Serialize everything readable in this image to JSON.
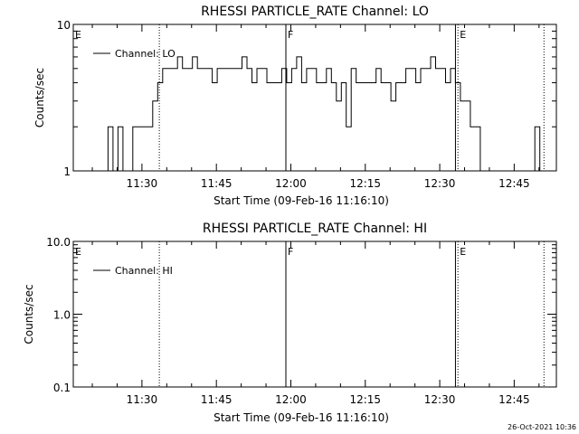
{
  "chart_data": [
    {
      "type": "line",
      "title": "RHESSI PARTICLE_RATE Channel: LO",
      "xlabel": "Start Time (09-Feb-16 11:16:10)",
      "ylabel": "Counts/sec",
      "y_scale": "log",
      "ylim": [
        1,
        10
      ],
      "y_ticks": [
        "1",
        "10"
      ],
      "x_range_minutes": [
        "11:16:10",
        "12:53:30"
      ],
      "x_ticks": [
        "11:30",
        "11:45",
        "12:00",
        "12:15",
        "12:30",
        "12:45"
      ],
      "legend": {
        "placement": "top-left",
        "entries": [
          "Channel: LO"
        ]
      },
      "series": [
        {
          "name": "Channel: LO",
          "x": [
            "11:22:10",
            "11:23:10",
            "11:24:10",
            "11:25:10",
            "11:26:10",
            "11:27:10",
            "11:28:10",
            "11:29:10",
            "11:30:10",
            "11:31:10",
            "11:32:10",
            "11:33:10",
            "11:34:10",
            "11:35:10",
            "11:36:10",
            "11:37:10",
            "11:38:10",
            "11:39:10",
            "11:40:10",
            "11:41:10",
            "11:42:10",
            "11:43:10",
            "11:44:10",
            "11:45:10",
            "11:46:10",
            "11:47:10",
            "11:48:10",
            "11:49:10",
            "11:50:10",
            "11:51:10",
            "11:52:10",
            "11:53:10",
            "11:54:10",
            "11:55:10",
            "11:56:10",
            "11:57:10",
            "11:58:10",
            "11:59:10",
            "12:00:10",
            "12:01:10",
            "12:02:10",
            "12:03:10",
            "12:04:10",
            "12:05:10",
            "12:06:10",
            "12:07:10",
            "12:08:10",
            "12:09:10",
            "12:10:10",
            "12:11:10",
            "12:12:10",
            "12:13:10",
            "12:14:10",
            "12:15:10",
            "12:16:10",
            "12:17:10",
            "12:18:10",
            "12:19:10",
            "12:20:10",
            "12:21:10",
            "12:22:10",
            "12:23:10",
            "12:24:10",
            "12:25:10",
            "12:26:10",
            "12:27:10",
            "12:28:10",
            "12:29:10",
            "12:30:10",
            "12:31:10",
            "12:32:10",
            "12:33:10",
            "12:34:10",
            "12:35:10",
            "12:36:10",
            "12:37:10",
            "12:38:10",
            "12:39:10",
            "12:40:10",
            "12:41:10",
            "12:42:10",
            "12:43:10",
            "12:44:10",
            "12:45:10",
            "12:46:10",
            "12:47:10",
            "12:48:10",
            "12:49:10",
            "12:50:10"
          ],
          "y": [
            1,
            2,
            1,
            2,
            1,
            1,
            2,
            2,
            2,
            2,
            3,
            4,
            5,
            5,
            5,
            6,
            5,
            5,
            6,
            5,
            5,
            5,
            4,
            5,
            5,
            5,
            5,
            5,
            6,
            5,
            4,
            5,
            5,
            4,
            4,
            4,
            5,
            4,
            5,
            6,
            4,
            5,
            5,
            4,
            4,
            5,
            4,
            3,
            4,
            2,
            5,
            4,
            4,
            4,
            4,
            5,
            4,
            4,
            3,
            4,
            4,
            5,
            5,
            4,
            5,
            5,
            6,
            5,
            5,
            4,
            5,
            4,
            3,
            3,
            2,
            2,
            1,
            1,
            1,
            1,
            1,
            1,
            1,
            1,
            1,
            1,
            1,
            2,
            1
          ]
        }
      ],
      "markers": [
        {
          "label": "E",
          "time": "11:16:10",
          "style": "dotted"
        },
        {
          "label": "",
          "time": "11:33:30",
          "style": "dotted"
        },
        {
          "label": "F",
          "time": "11:59:00",
          "style": "solid"
        },
        {
          "label": "",
          "time": "12:33:10",
          "style": "solid"
        },
        {
          "label": "E",
          "time": "12:33:40",
          "style": "dotted"
        },
        {
          "label": "",
          "time": "12:51:00",
          "style": "dotted"
        }
      ]
    },
    {
      "type": "line",
      "title": "RHESSI PARTICLE_RATE Channel: HI",
      "xlabel": "Start Time (09-Feb-16 11:16:10)",
      "ylabel": "Counts/sec",
      "y_scale": "log",
      "ylim": [
        0.1,
        10
      ],
      "y_ticks": [
        "0.1",
        "1.0",
        "10.0"
      ],
      "x_range_minutes": [
        "11:16:10",
        "12:53:30"
      ],
      "x_ticks": [
        "11:30",
        "11:45",
        "12:00",
        "12:15",
        "12:30",
        "12:45"
      ],
      "legend": {
        "placement": "top-left",
        "entries": [
          "Channel: HI"
        ]
      },
      "series": [
        {
          "name": "Channel: HI",
          "x": [],
          "y": []
        }
      ],
      "markers": [
        {
          "label": "E",
          "time": "11:16:10",
          "style": "dotted"
        },
        {
          "label": "",
          "time": "11:33:30",
          "style": "dotted"
        },
        {
          "label": "F",
          "time": "11:59:00",
          "style": "solid"
        },
        {
          "label": "",
          "time": "12:33:10",
          "style": "solid"
        },
        {
          "label": "E",
          "time": "12:33:40",
          "style": "dotted"
        },
        {
          "label": "",
          "time": "12:51:00",
          "style": "dotted"
        }
      ]
    }
  ],
  "footer": {
    "timestamp": "26-Oct-2021 10:36"
  }
}
